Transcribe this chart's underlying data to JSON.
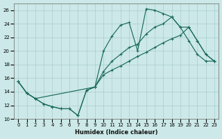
{
  "xlabel": "Humidex (Indice chaleur)",
  "bg_color": "#cce8e8",
  "grid_color": "#aacece",
  "line_color": "#1a6b5a",
  "xlim": [
    -0.5,
    23.5
  ],
  "ylim": [
    10,
    27
  ],
  "xticks": [
    0,
    1,
    2,
    3,
    4,
    5,
    6,
    7,
    8,
    9,
    10,
    11,
    12,
    13,
    14,
    15,
    16,
    17,
    18,
    19,
    20,
    21,
    22,
    23
  ],
  "yticks": [
    10,
    12,
    14,
    16,
    18,
    20,
    22,
    24,
    26
  ],
  "line1_x": [
    0,
    1,
    2,
    3,
    4,
    5,
    6,
    7,
    8,
    9,
    10,
    11,
    12,
    13,
    14,
    15,
    16,
    17,
    18,
    19,
    20,
    21,
    22,
    23
  ],
  "line1_y": [
    15.5,
    13.8,
    13.0,
    12.2,
    11.8,
    11.5,
    11.5,
    10.5,
    14.2,
    14.7,
    20.0,
    22.2,
    23.8,
    24.2,
    20.0,
    26.2,
    26.0,
    25.5,
    25.0,
    23.5,
    21.5,
    19.5,
    18.5,
    18.5
  ],
  "line2_x": [
    0,
    1,
    2,
    9,
    10,
    11,
    12,
    13,
    14,
    15,
    16,
    17,
    18,
    19,
    20,
    21,
    22,
    23
  ],
  "line2_y": [
    15.5,
    13.8,
    13.0,
    14.7,
    17.0,
    18.5,
    19.5,
    20.5,
    21.0,
    22.5,
    23.5,
    24.0,
    25.0,
    23.5,
    23.5,
    21.5,
    19.5,
    18.5
  ],
  "line3_x": [
    0,
    1,
    2,
    3,
    4,
    5,
    6,
    7,
    8,
    9,
    10,
    11,
    12,
    13,
    14,
    15,
    16,
    17,
    18,
    19,
    20,
    21,
    22,
    23
  ],
  "line3_y": [
    15.5,
    13.8,
    13.0,
    12.2,
    11.8,
    11.5,
    11.5,
    10.5,
    14.2,
    14.7,
    16.5,
    17.2,
    17.8,
    18.5,
    19.2,
    19.8,
    20.5,
    21.2,
    21.8,
    22.3,
    23.5,
    21.5,
    19.5,
    18.5
  ]
}
